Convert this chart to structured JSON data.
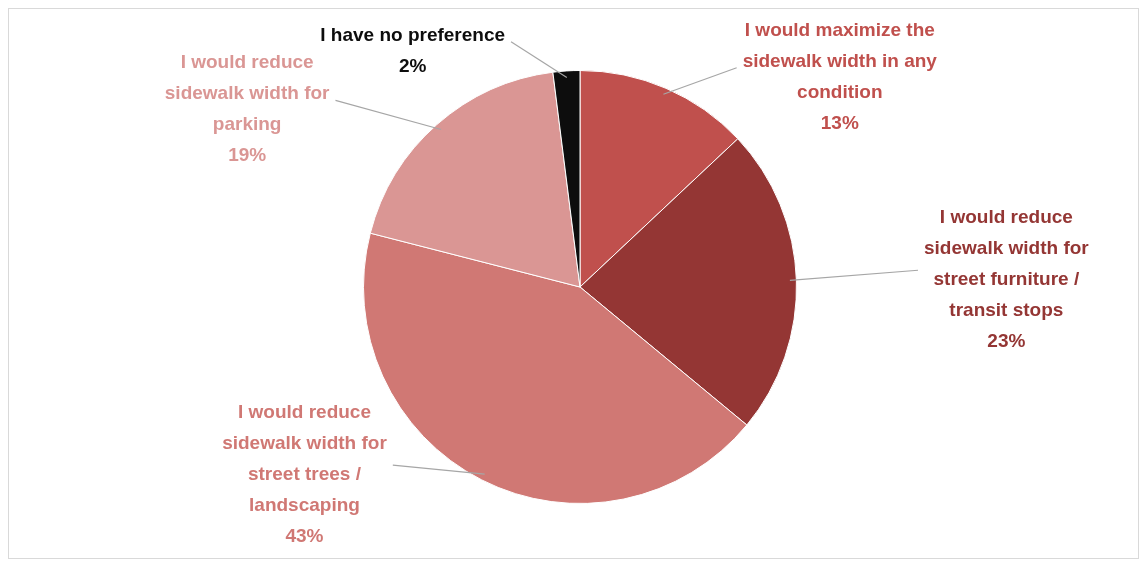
{
  "chart_data": {
    "type": "pie",
    "categories": [
      "I would maximize the sidewalk width in any condition",
      "I would reduce sidewalk width for street furniture / transit stops",
      "I would reduce sidewalk width for street trees / landscaping",
      "I would reduce sidewalk width for parking",
      "I have no preference"
    ],
    "values": [
      13,
      23,
      43,
      19,
      2
    ],
    "colors": [
      "#c0504d",
      "#943634",
      "#d07874",
      "#da9694",
      "#0d0d0d"
    ],
    "value_labels": [
      "13%",
      "23%",
      "43%",
      "19%",
      "2%"
    ]
  }
}
